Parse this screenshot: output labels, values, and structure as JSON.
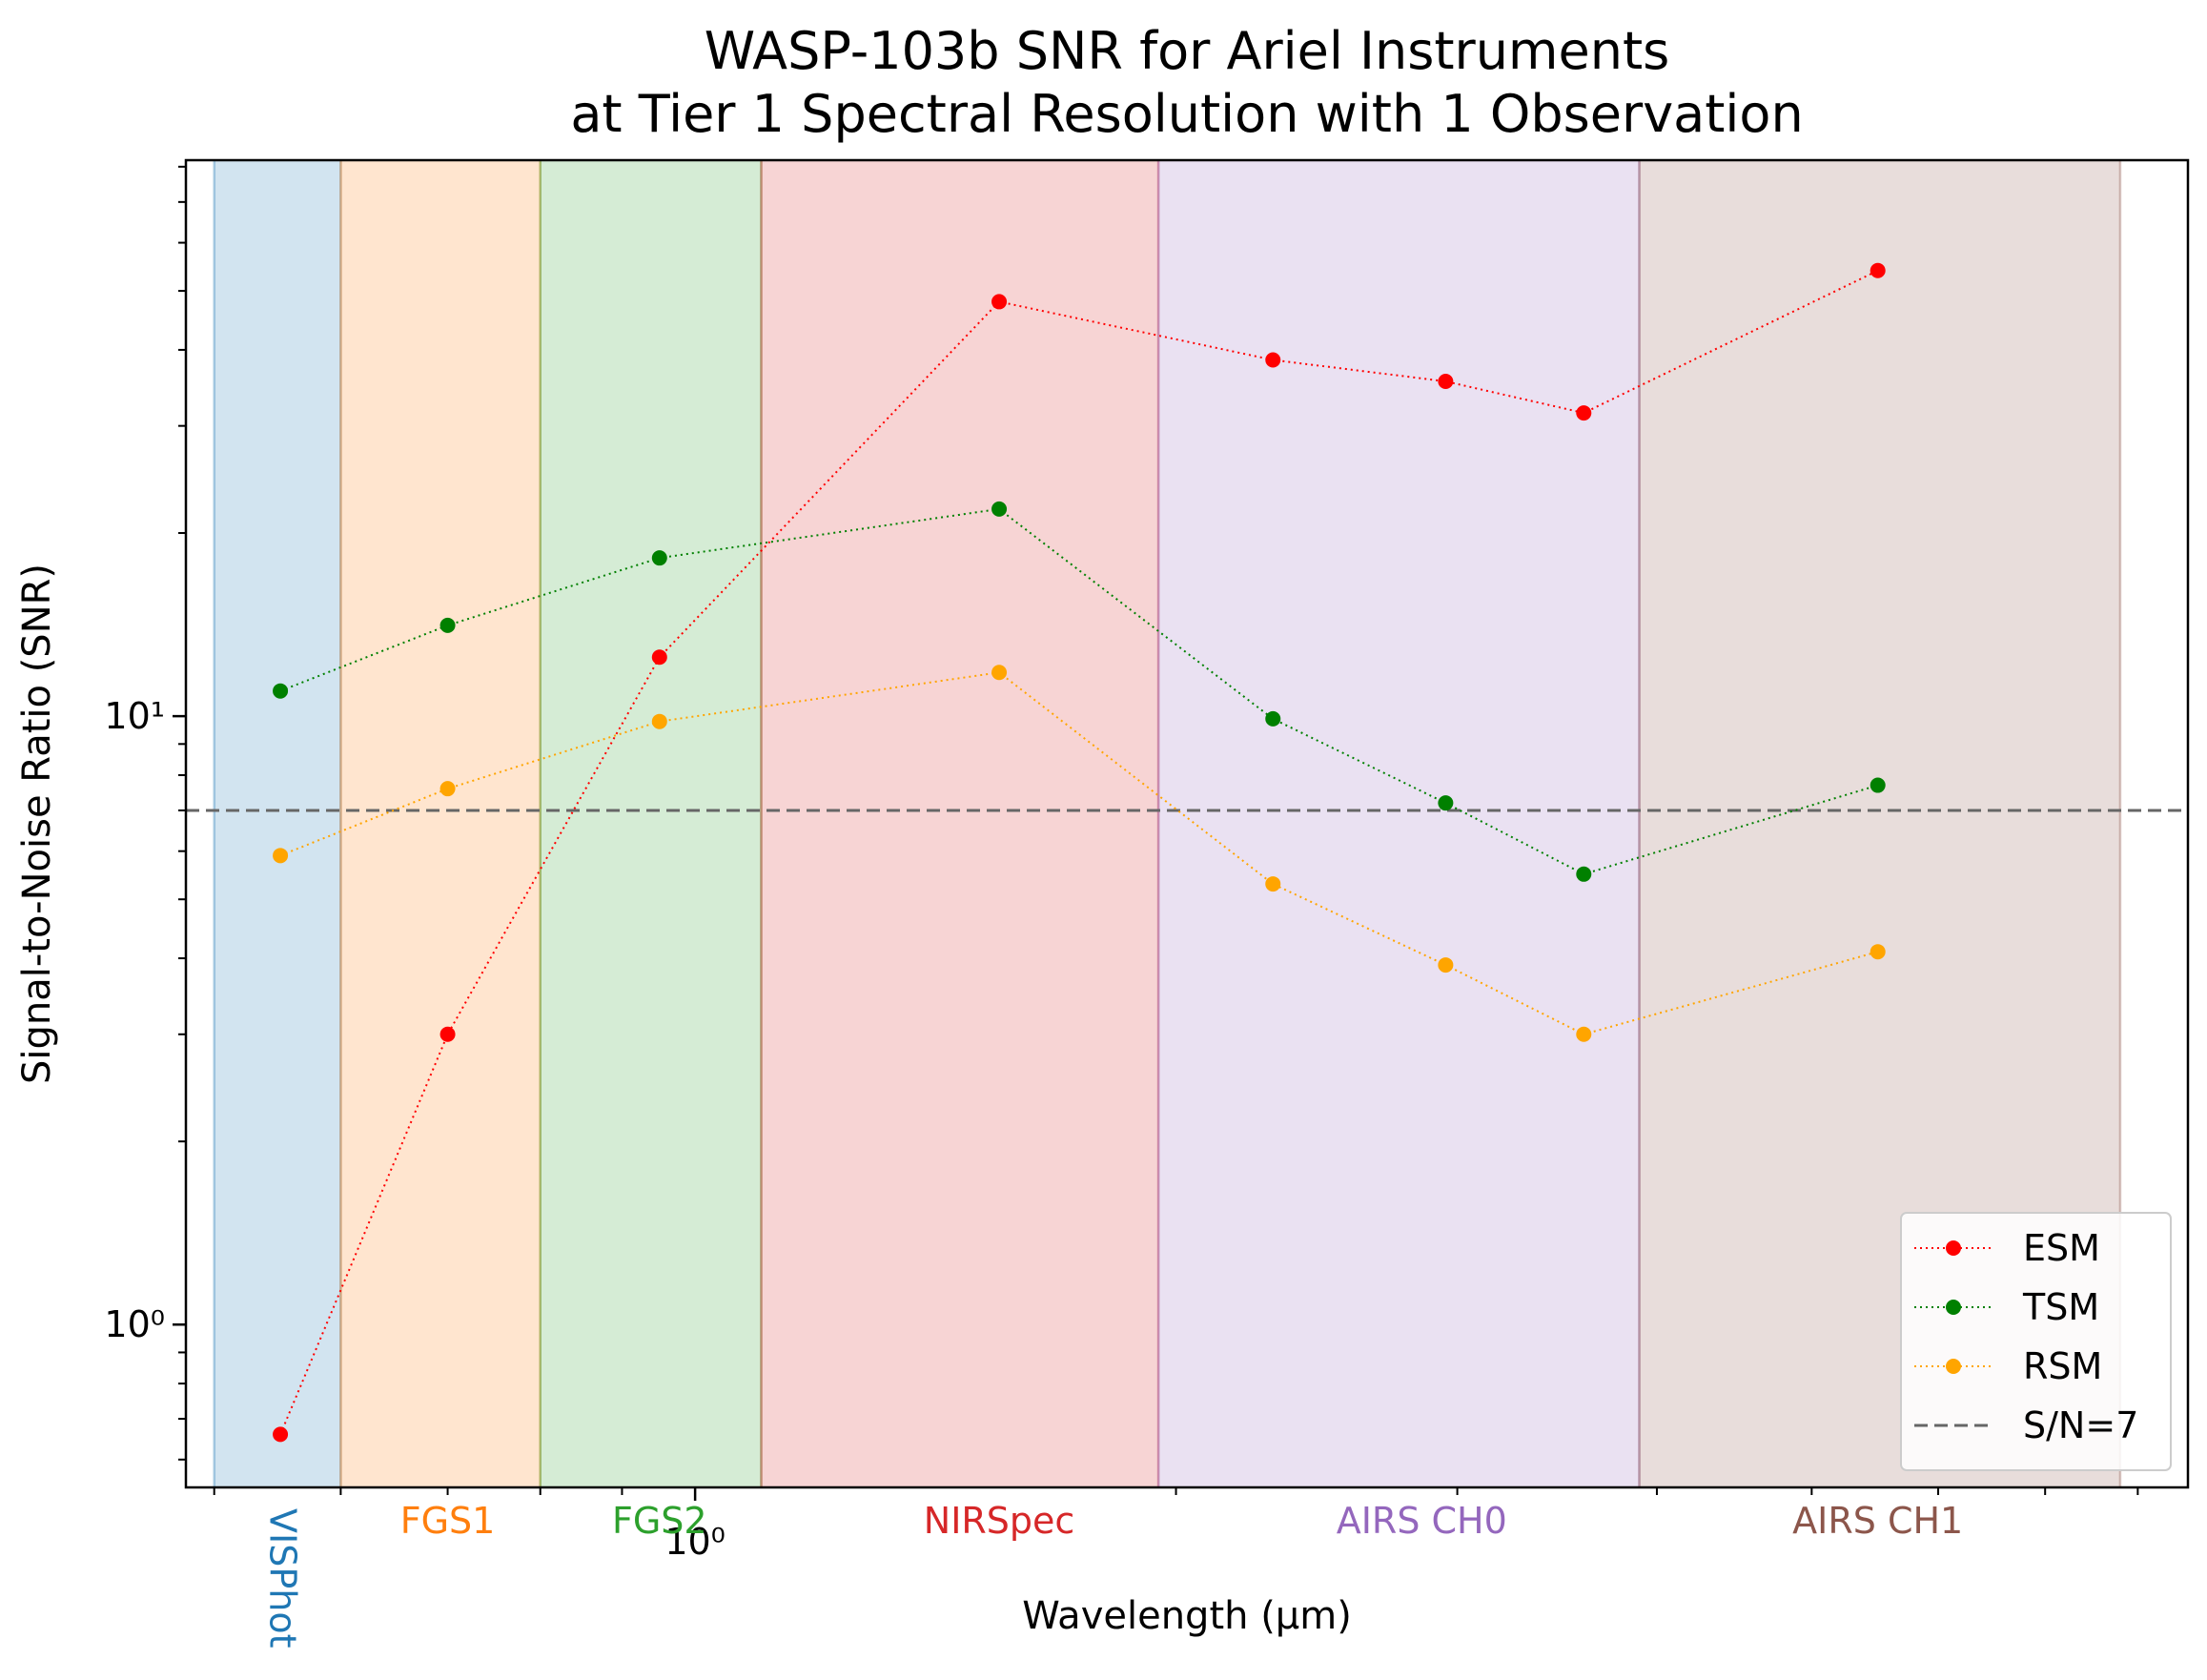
{
  "chart_data": {
    "type": "line",
    "title_lines": [
      "WASP-103b SNR for Ariel Instruments",
      "at Tier 1 Spectral Resolution with 1 Observation"
    ],
    "xlabel": "Wavelength (μm)",
    "ylabel": "Signal-to-Noise Ratio (SNR)",
    "xscale": "log",
    "yscale": "log",
    "xlim": [
      0.48,
      8.6
    ],
    "ylim": [
      0.54,
      82
    ],
    "x_ticks": [
      {
        "value": 1.0,
        "label": "10⁰"
      }
    ],
    "y_ticks": [
      {
        "value": 1,
        "label": "10⁰"
      },
      {
        "value": 10,
        "label": "10¹"
      }
    ],
    "instruments": [
      {
        "name": "VISPhot",
        "range": [
          0.5,
          0.6
        ],
        "color": "#1f77b4",
        "label_x": 0.55,
        "vertical": true
      },
      {
        "name": "FGS1",
        "range": [
          0.6,
          0.8
        ],
        "color": "#ff7f0e",
        "label_x": 0.7
      },
      {
        "name": "FGS2",
        "range": [
          0.8,
          1.1
        ],
        "color": "#2ca02c",
        "label_x": 0.95
      },
      {
        "name": "NIRSpec",
        "range": [
          1.1,
          1.95
        ],
        "color": "#d62728",
        "label_x": 1.55
      },
      {
        "name": "AIRS CH0",
        "range": [
          1.95,
          3.9
        ],
        "color": "#9467bd",
        "label_x": 2.85
      },
      {
        "name": "AIRS CH1",
        "range": [
          3.9,
          7.8
        ],
        "color": "#8c564b",
        "label_x": 5.5
      }
    ],
    "series": [
      {
        "name": "ESM",
        "color": "#ff0000",
        "x": [
          0.55,
          0.7,
          0.95,
          1.55,
          2.3,
          2.95,
          3.6,
          5.5
        ],
        "y": [
          0.66,
          3.0,
          12.5,
          48,
          38.5,
          35.5,
          31.5,
          54
        ]
      },
      {
        "name": "TSM",
        "color": "#008000",
        "x": [
          0.55,
          0.7,
          0.95,
          1.55,
          2.3,
          2.95,
          3.6,
          5.5
        ],
        "y": [
          11.0,
          14.1,
          18.2,
          21.9,
          9.9,
          7.2,
          5.5,
          7.7
        ]
      },
      {
        "name": "RSM",
        "color": "#ffa500",
        "x": [
          0.55,
          0.7,
          0.95,
          1.55,
          2.3,
          2.95,
          3.6,
          5.5
        ],
        "y": [
          5.9,
          7.6,
          9.8,
          11.8,
          5.3,
          3.9,
          3.0,
          4.1
        ]
      }
    ],
    "reference_line": {
      "name": "S/N=7",
      "y": 7,
      "color": "#666666",
      "style": "dashed"
    },
    "legend": {
      "placement": "lower-right",
      "entries": [
        "ESM",
        "TSM",
        "RSM",
        "S/N=7"
      ]
    },
    "grid": false
  }
}
